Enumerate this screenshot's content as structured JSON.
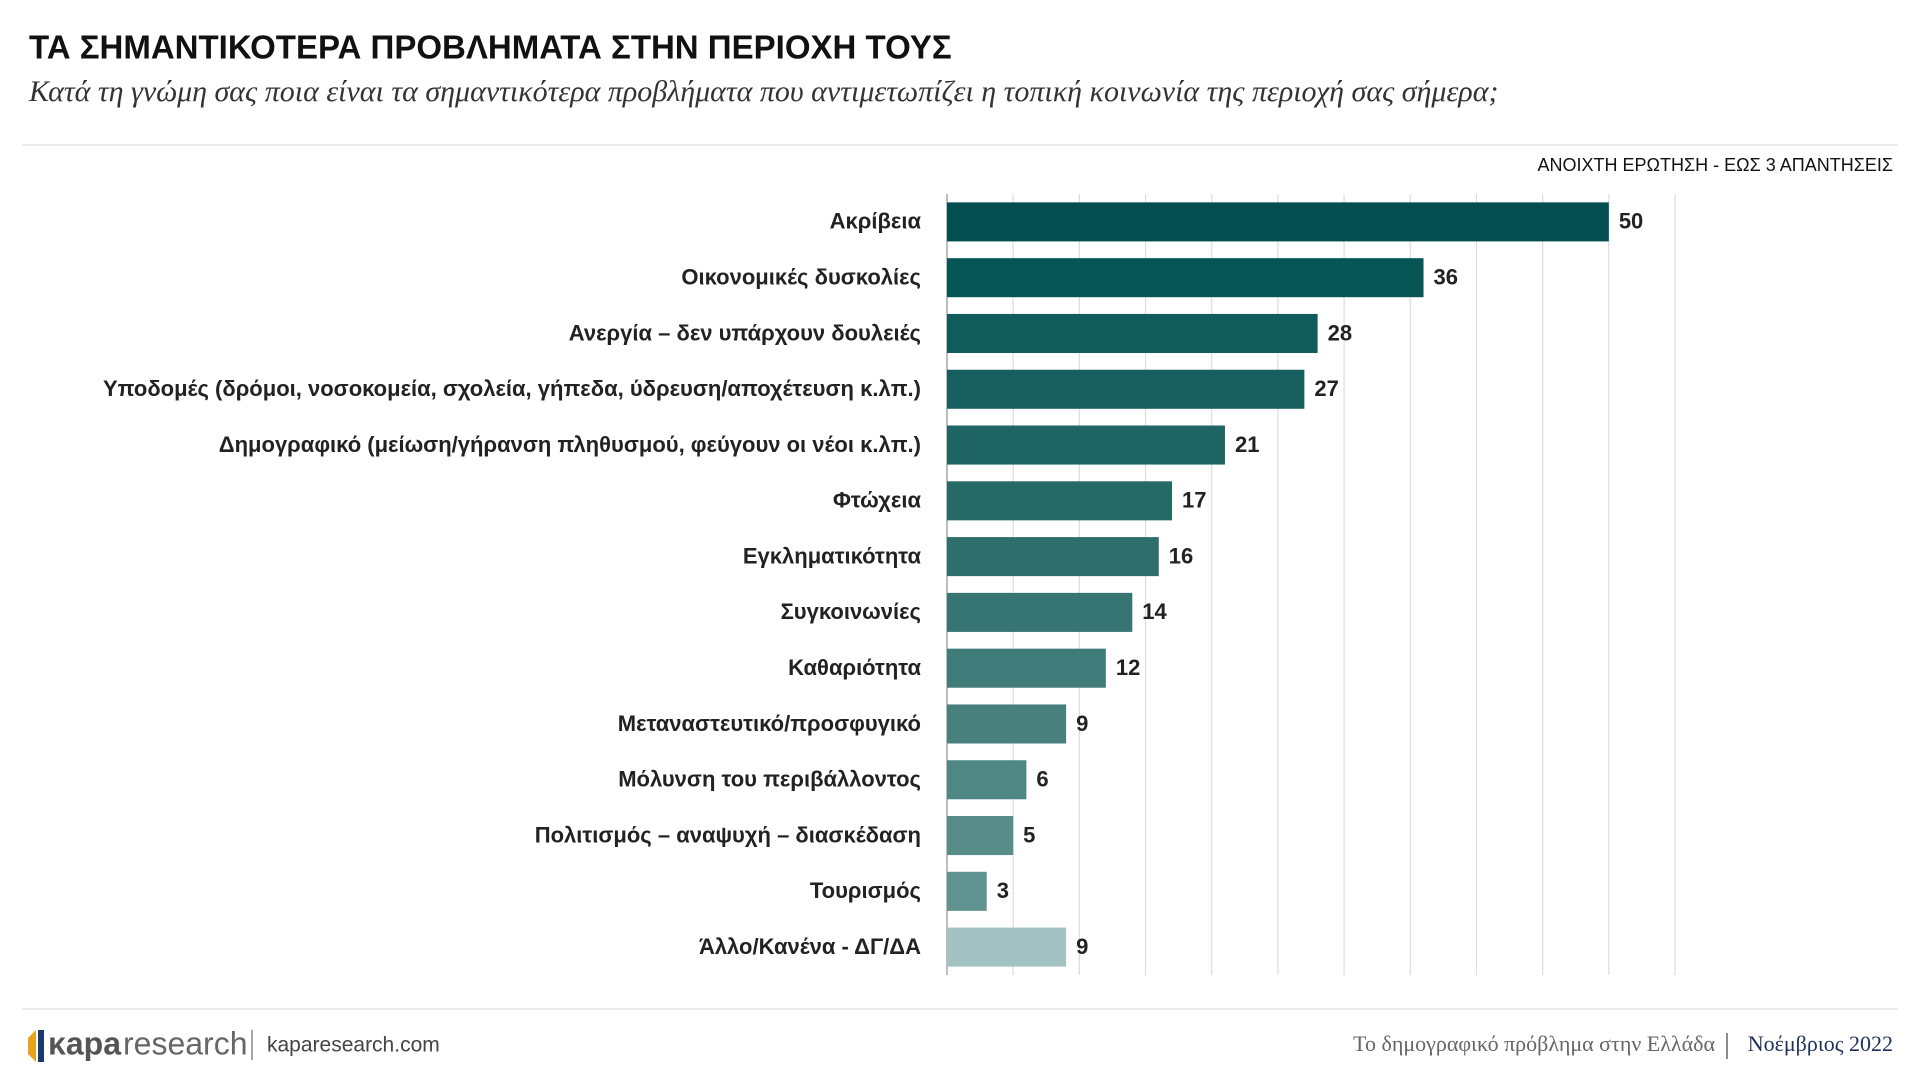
{
  "chart_data": {
    "type": "bar",
    "orientation": "horizontal",
    "title": "ΤΑ ΣΗΜΑΝΤΙΚΟΤΕΡΑ ΠΡΟΒΛΗΜΑΤΑ ΣΤΗΝ ΠΕΡΙΟΧΗ ΤΟΥΣ",
    "subtitle": "Κατά τη γνώμη σας ποια είναι τα σημαντικότερα προβλήματα που αντιμετωπίζει η τοπική κοινωνία της περιοχή σας σήμερα;",
    "annotation": "ΑΝΟΙΧΤΗ ΕΡΩΤΗΣΗ - ΕΩΣ 3 ΑΠΑΝΤΗΣΕΙΣ",
    "categories": [
      "Ακρίβεια",
      "Οικονομικές δυσκολίες",
      "Ανεργία – δεν υπάρχουν δουλειές",
      "Υποδομές (δρόμοι, νοσοκομεία, σχολεία, γήπεδα, ύδρευση/αποχέτευση κ.λπ.)",
      "Δημογραφικό (μείωση/γήρανση πληθυσμού, φεύγουν οι νέοι κ.λπ.)",
      "Φτώχεια",
      "Εγκληματικότητα",
      "Συγκοινωνίες",
      "Καθαριότητα",
      "Μεταναστευτικό/προσφυγικό",
      "Μόλυνση του περιβάλλοντος",
      "Πολιτισμός – αναψυχή – διασκέδαση",
      "Τουρισμός",
      "Άλλο/Κανένα - ΔΓ/ΔΑ"
    ],
    "values": [
      50,
      36,
      28,
      27,
      21,
      17,
      16,
      14,
      12,
      9,
      6,
      5,
      3,
      9
    ],
    "colors": [
      "#034f4f",
      "#075656",
      "#0f5c5b",
      "#175f5e",
      "#1e6563",
      "#266a68",
      "#2e6f6d",
      "#377573",
      "#3f7b78",
      "#47807d",
      "#4f8784",
      "#578c89",
      "#60928f",
      "#a2c3c2"
    ],
    "xlim": [
      0,
      55
    ],
    "xticks": [
      0,
      5,
      10,
      15,
      20,
      25,
      30,
      35,
      40,
      45,
      50,
      55
    ],
    "tick_labels": false,
    "grid": true
  },
  "footer": {
    "brand_bold": "κapa",
    "brand_light": "research",
    "site": "kaparesearch.com",
    "report": "Το δημογραφικό πρόβλημα στην Ελλάδα",
    "date": "Νοέμβριος 2022"
  }
}
